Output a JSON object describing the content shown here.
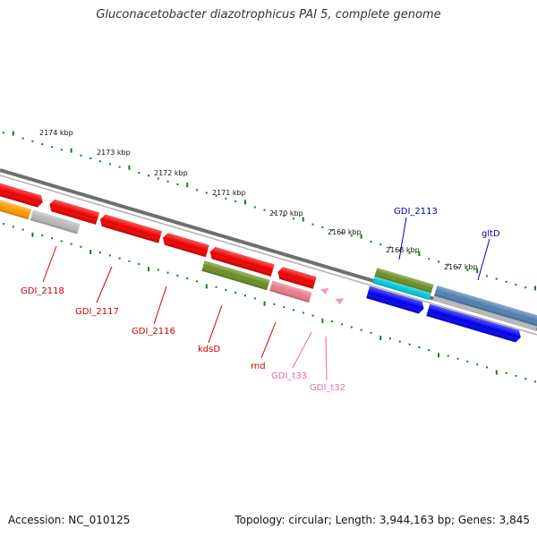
{
  "title": "Gluconacetobacter diazotrophicus PAI 5, complete genome",
  "footer": {
    "accession": "Accession: NC_010125",
    "topology": "Topology: circular; Length: 3,944,163 bp; Genes: 3,845"
  },
  "colors": {
    "backbone": "#808080",
    "tick": "#1a7a1a",
    "red": "#ee0000",
    "red_label": "#cc0000",
    "pink": "#e87a8a",
    "pink_label": "#e06aa8",
    "olive": "#6b8e23",
    "gray": "#b8b8b8",
    "orange": "#ff9900",
    "blue": "#0000ee",
    "blue_label": "#0000aa",
    "steelblue": "#4f7fb0",
    "cyan": "#00c8d8"
  },
  "scale": {
    "tick_labels": [
      "2174 kbp",
      "2173 kbp",
      "2172 kbp",
      "2171 kbp",
      "2170 kbp",
      "2169 kbp",
      "2168 kbp",
      "2167 kbp"
    ]
  },
  "features": [
    {
      "name": "GDI_2118",
      "strand": "reverse",
      "color": "red"
    },
    {
      "name": "GDI_2117",
      "strand": "reverse",
      "color": "red"
    },
    {
      "name": "GDI_2116",
      "strand": "reverse",
      "color": "red"
    },
    {
      "name": "kdsD",
      "strand": "reverse",
      "color": "olive"
    },
    {
      "name": "rnd",
      "strand": "reverse",
      "color": "red"
    },
    {
      "name": "GDI_t33",
      "strand": "reverse",
      "color": "pink"
    },
    {
      "name": "GDI_t32",
      "strand": "reverse",
      "color": "pink"
    },
    {
      "name": "GDI_2113",
      "strand": "forward",
      "color": "blue"
    },
    {
      "name": "gltD",
      "strand": "forward",
      "color": "steelblue"
    }
  ]
}
